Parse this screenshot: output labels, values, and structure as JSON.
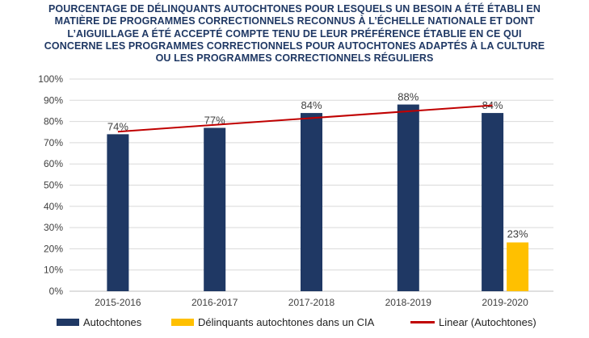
{
  "title_lines": [
    "POURCENTAGE DE DÉLINQUANTS AUTOCHTONES POUR LESQUELS UN BESOIN A ÉTÉ ÉTABLI EN",
    "MATIÈRE DE PROGRAMMES CORRECTIONNELS RECONNUS À L’ÉCHELLE NATIONALE ET DONT",
    "L’AIGUILLAGE A ÉTÉ ACCEPTÉ COMPTE TENU DE LEUR PRÉFÉRENCE ÉTABLIE EN CE QUI",
    "CONCERNE LES PROGRAMMES CORRECTIONNELS POUR AUTOCHTONES ADAPTÉS À LA CULTURE",
    "OU LES PROGRAMMES CORRECTIONNELS RÉGULIERS"
  ],
  "colors": {
    "series1": "#1f3864",
    "series2": "#ffc000",
    "trend": "#c00000",
    "grid": "#d9d9d9",
    "title": "#1f3864"
  },
  "chart_data": {
    "type": "bar",
    "title": "POURCENTAGE DE DÉLINQUANTS AUTOCHTONES POUR LESQUELS UN BESOIN A ÉTÉ ÉTABLI EN MATIÈRE DE PROGRAMMES CORRECTIONNELS RECONNUS À L’ÉCHELLE NATIONALE ET DONT L’AIGUILLAGE A ÉTÉ ACCEPTÉ COMPTE TENU DE LEUR PRÉFÉRENCE ÉTABLIE EN CE QUI CONCERNE LES PROGRAMMES CORRECTIONNELS POUR AUTOCHTONES ADAPTÉS À LA CULTURE OU LES PROGRAMMES CORRECTIONNELS RÉGULIERS",
    "categories": [
      "2015-2016",
      "2016-2017",
      "2017-2018",
      "2018-2019",
      "2019-2020"
    ],
    "series": [
      {
        "name": "Autochtones",
        "values": [
          74,
          77,
          84,
          88,
          84
        ],
        "labels": [
          "74%",
          "77%",
          "84%",
          "88%",
          "84%"
        ]
      },
      {
        "name": "Délinquants autochtones dans un CIA",
        "values": [
          null,
          null,
          null,
          null,
          23
        ],
        "labels": [
          "",
          "",
          "",
          "",
          "23%"
        ]
      }
    ],
    "trendline": {
      "name": "Linear (Autochtones)",
      "of_series": "Autochtones",
      "type": "linear"
    },
    "yticks": [
      "0%",
      "10%",
      "20%",
      "30%",
      "40%",
      "50%",
      "60%",
      "70%",
      "80%",
      "90%",
      "100%"
    ],
    "ylim": [
      0,
      100
    ],
    "xlabel": "",
    "ylabel": "",
    "grid": true,
    "legend_position": "bottom"
  }
}
